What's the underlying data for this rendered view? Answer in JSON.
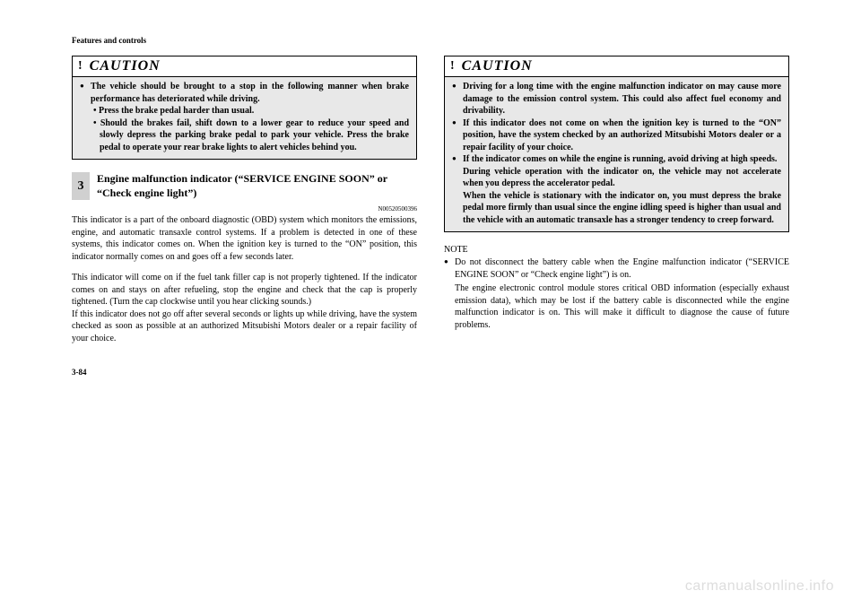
{
  "header": "Features and controls",
  "left": {
    "caution": {
      "title": "CAUTION",
      "item1": "The vehicle should be brought to a stop in the following manner when brake performance has deteriorated while driving.",
      "sub1": "• Press the brake pedal harder than usual.",
      "sub2": "• Should the brakes fail, shift down to a lower gear to reduce your speed and slowly depress the parking brake pedal to park your vehicle. Press the brake pedal to operate your rear brake lights to alert vehicles behind you."
    },
    "section_num": "3",
    "section_title": "Engine malfunction indicator (“SERVICE ENGINE SOON” or “Check engine light”)",
    "refnum": "N00520500396",
    "para1": "This indicator is a part of the onboard diagnostic (OBD) system which monitors the emissions, engine, and automatic transaxle control systems. If a problem is detected in one of these systems, this indicator comes on. When the ignition key is turned to the “ON” position, this indicator normally comes on and goes off a few seconds later.",
    "para2": "This indicator will come on if the fuel tank filler cap is not properly tightened. If the indicator comes on and stays on after refueling, stop the engine and check that the cap is properly tightened. (Turn the cap clockwise until you hear clicking sounds.)",
    "para3": "If this indicator does not go off after several seconds or lights up while driving, have the system checked as soon as possible at an authorized Mitsubishi Motors dealer or a repair facility of your choice."
  },
  "right": {
    "caution": {
      "title": "CAUTION",
      "item1": "Driving for a long time with the engine malfunction indicator on may cause more damage to the emission control system. This could also affect fuel economy and drivability.",
      "item2": "If this indicator does not come on when the ignition key is turned to the “ON” position, have the system checked by an authorized Mitsubishi Motors dealer or a repair facility of your choice.",
      "item3": "If the indicator comes on while the engine is running, avoid driving at high speeds.",
      "item3b": "During vehicle operation with the indicator on, the vehicle may not accelerate when you depress the accelerator pedal.",
      "item3c": "When the vehicle is stationary with the indicator on, you must depress the brake pedal more firmly than usual since the engine idling speed is higher than usual and the vehicle with an automatic transaxle has a stronger tendency to creep forward."
    },
    "note_label": "NOTE",
    "note_item": "Do not disconnect the battery cable when the Engine malfunction indicator (“SERVICE ENGINE SOON” or “Check engine light”) is on.",
    "note_sub": "The engine electronic control module stores critical OBD information (especially exhaust emission data), which may be lost if the battery cable is disconnected while the engine malfunction indicator is on. This will make it difficult to diagnose the cause of future problems."
  },
  "page_num": "3-84",
  "watermark": "carmanualsonline.info"
}
